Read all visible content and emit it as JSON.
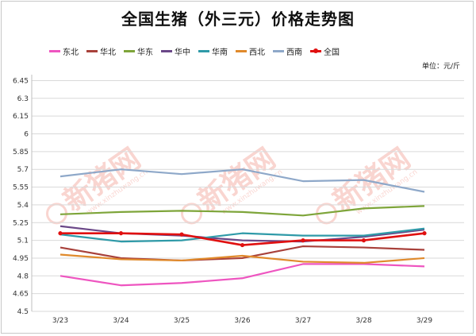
{
  "title": "全国生猪（外三元）价格走势图",
  "unit_label": "单位：元/斤",
  "watermark": {
    "text": "新猪网",
    "url": "www.xinzhuwang.cn",
    "brand_color": "#e8432e"
  },
  "colors": {
    "dongbei": "#ee55c0",
    "huabei": "#a8413b",
    "huadong": "#7ea53a",
    "huazhong": "#6b4888",
    "huanan": "#2f9aa8",
    "xibei": "#e08a2c",
    "xinan": "#8ea8c9",
    "quanguo": "#e01010",
    "grid": "#d9d9d9"
  },
  "chart_data": {
    "type": "line",
    "title": "全国生猪（外三元）价格走势图",
    "ylabel": "单位：元/斤",
    "xlabel": "",
    "categories": [
      "3/23",
      "3/24",
      "3/25",
      "3/26",
      "3/27",
      "3/28",
      "3/29"
    ],
    "ylim": [
      4.5,
      6.5
    ],
    "yticks": [
      "6.45",
      "6.3",
      "6.15",
      "6",
      "5.85",
      "5.7",
      "5.55",
      "5.4",
      "5.25",
      "5.1",
      "4.95",
      "4.8",
      "4.65",
      "4.5"
    ],
    "grid": true,
    "legend_position": "top",
    "series": [
      {
        "name": "东北",
        "color_key": "dongbei",
        "markers": false,
        "values": [
          4.8,
          4.72,
          4.74,
          4.78,
          4.9,
          4.9,
          4.88
        ]
      },
      {
        "name": "华北",
        "color_key": "huabei",
        "markers": false,
        "values": [
          5.04,
          4.95,
          4.93,
          4.95,
          5.05,
          5.04,
          5.02
        ]
      },
      {
        "name": "华东",
        "color_key": "huadong",
        "markers": false,
        "values": [
          5.32,
          5.34,
          5.35,
          5.34,
          5.31,
          5.37,
          5.39
        ]
      },
      {
        "name": "华中",
        "color_key": "huazhong",
        "markers": false,
        "values": [
          5.22,
          5.16,
          5.14,
          5.1,
          5.09,
          5.13,
          5.19
        ]
      },
      {
        "name": "华南",
        "color_key": "huanan",
        "markers": false,
        "values": [
          5.15,
          5.09,
          5.1,
          5.16,
          5.14,
          5.14,
          5.2
        ]
      },
      {
        "name": "西北",
        "color_key": "xibei",
        "markers": false,
        "values": [
          4.98,
          4.94,
          4.93,
          4.97,
          4.92,
          4.91,
          4.95
        ]
      },
      {
        "name": "西南",
        "color_key": "xinan",
        "markers": false,
        "values": [
          5.64,
          5.7,
          5.66,
          5.7,
          5.6,
          5.61,
          5.51
        ]
      },
      {
        "name": "全国",
        "color_key": "quanguo",
        "markers": true,
        "values": [
          5.16,
          5.16,
          5.15,
          5.06,
          5.1,
          5.1,
          5.16
        ]
      }
    ]
  }
}
